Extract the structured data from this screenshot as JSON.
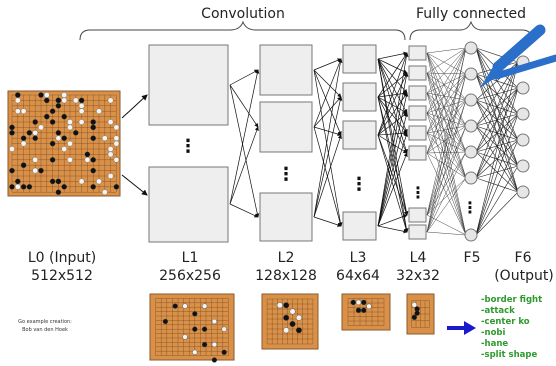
{
  "header": {
    "convolution": "Convolution",
    "fully_connected": "Fully connected"
  },
  "layers": [
    {
      "name": "L0 (Input)",
      "size": "512x512"
    },
    {
      "name": "L1",
      "size": "256x256"
    },
    {
      "name": "L2",
      "size": "128x128"
    },
    {
      "name": "L3",
      "size": "64x64"
    },
    {
      "name": "L4",
      "size": "32x32"
    },
    {
      "name": "F5",
      "size": ""
    },
    {
      "name": "F6",
      "size": "(Output)"
    }
  ],
  "credit": {
    "line1": "Go example creation:",
    "line2": "Bob van den Hoek"
  },
  "features": [
    "-border fight",
    "-attack",
    "-center ko",
    "-nobi",
    "-hane",
    "-split shape"
  ],
  "colors": {
    "board": "#d9914a",
    "feature_text": "#2e9a2e",
    "arrow": "#1a1acc",
    "pointer": "#2a6fc9",
    "layer_fill": "#eeeeee"
  }
}
